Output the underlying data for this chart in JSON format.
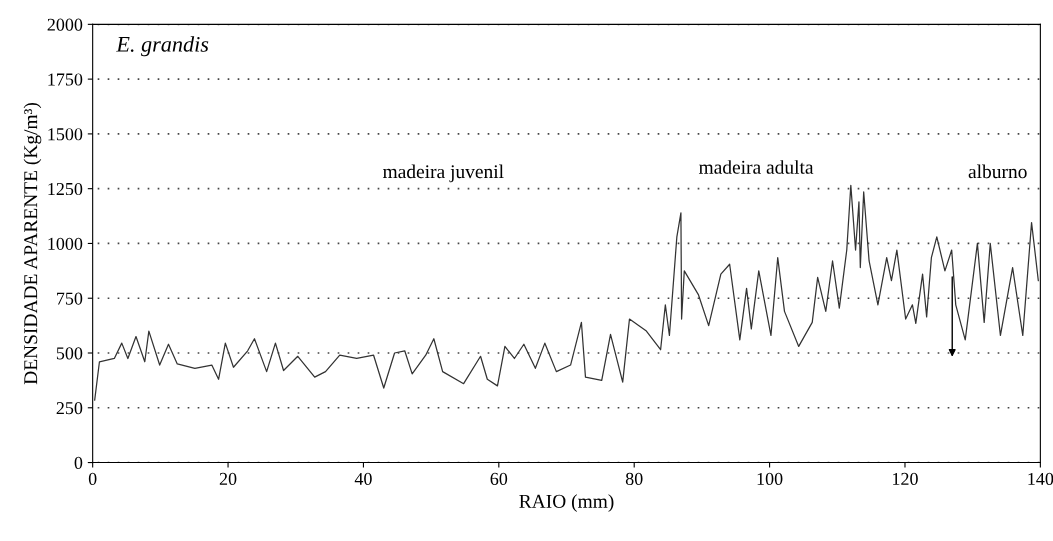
{
  "chart_data": {
    "type": "line",
    "xlabel": "RAIO (mm)",
    "ylabel": "DENSIDADE APARENTE (Kg/m³)",
    "annotations": [
      "E. grandis",
      "madeira juvenil",
      "madeira adulta",
      "alburno"
    ],
    "x": [
      0.3,
      1.0,
      3.2,
      4.3,
      5.2,
      6.4,
      7.7,
      8.3,
      9.9,
      11.2,
      12.5,
      15.1,
      17.6,
      18.6,
      19.6,
      20.8,
      22.9,
      23.9,
      25.7,
      27.0,
      28.2,
      30.3,
      32.8,
      34.4,
      36.5,
      39.0,
      41.5,
      43.0,
      44.6,
      46.1,
      47.2,
      49.2,
      50.4,
      51.7,
      54.8,
      57.3,
      58.3,
      59.8,
      60.9,
      62.3,
      63.7,
      65.4,
      66.8,
      68.5,
      70.6,
      72.2,
      72.8,
      75.2,
      76.5,
      78.3,
      79.3,
      81.8,
      83.9,
      84.6,
      85.2,
      86.3,
      86.9,
      87.0,
      87.4,
      89.5,
      91.0,
      92.8,
      94.1,
      95.6,
      96.6,
      97.3,
      98.4,
      100.2,
      101.2,
      102.2,
      104.3,
      106.3,
      107.1,
      108.3,
      109.3,
      110.3,
      111.4,
      112.0,
      112.7,
      113.2,
      113.4,
      113.9,
      114.7,
      116.0,
      117.3,
      118.0,
      118.8,
      120.1,
      121.1,
      121.6,
      122.6,
      123.2,
      123.9,
      124.7,
      125.9,
      126.9,
      127.5,
      128.9,
      130.7,
      131.7,
      132.6,
      134.1,
      135.9,
      137.4,
      138.7,
      139.7
    ],
    "series": [
      {
        "color": "#333333",
        "values": [
          285,
          460,
          475,
          545,
          475,
          575,
          460,
          600,
          445,
          540,
          450,
          430,
          445,
          380,
          545,
          435,
          510,
          565,
          415,
          545,
          420,
          485,
          390,
          415,
          490,
          475,
          490,
          340,
          500,
          510,
          405,
          490,
          565,
          415,
          360,
          485,
          380,
          350,
          530,
          475,
          540,
          430,
          545,
          415,
          445,
          640,
          390,
          375,
          585,
          367,
          655,
          600,
          515,
          720,
          580,
          1030,
          1140,
          655,
          875,
          765,
          625,
          860,
          905,
          560,
          795,
          610,
          875,
          580,
          935,
          690,
          530,
          640,
          845,
          690,
          920,
          705,
          970,
          1265,
          970,
          1190,
          890,
          1235,
          920,
          720,
          935,
          830,
          970,
          655,
          720,
          635,
          860,
          665,
          935,
          1030,
          875,
          970,
          720,
          560,
          1000,
          640,
          1000,
          580,
          890,
          580,
          1095,
          830
        ]
      }
    ],
    "xlim": [
      0,
      140
    ],
    "xticks": [
      0,
      20,
      40,
      60,
      80,
      100,
      120,
      140
    ],
    "ylim": [
      0,
      2000
    ],
    "yticks": [
      0,
      250,
      500,
      750,
      1000,
      1250,
      1500,
      1750,
      2000
    ],
    "grid": "y",
    "marker": "none",
    "line_style": "solid"
  }
}
